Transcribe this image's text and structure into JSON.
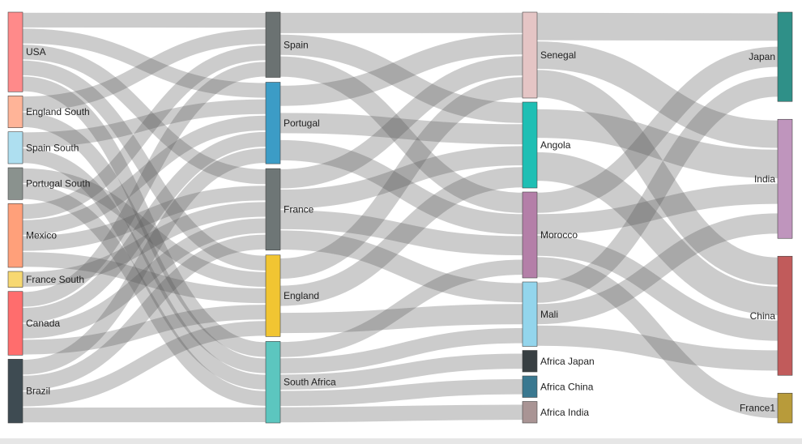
{
  "diagram": {
    "type": "sankey",
    "columns": [
      {
        "nodes": [
          {
            "id": "usa",
            "label": "USA",
            "color": "#ff8a8a"
          },
          {
            "id": "england-south",
            "label": "England South",
            "color": "#ffb498"
          },
          {
            "id": "spain-south",
            "label": "Spain South",
            "color": "#aedff0"
          },
          {
            "id": "portugal-south",
            "label": "Portugal South",
            "color": "#8a928e"
          },
          {
            "id": "mexico",
            "label": "Mexico",
            "color": "#ffa07a"
          },
          {
            "id": "france-south",
            "label": "France South",
            "color": "#f7d871"
          },
          {
            "id": "canada",
            "label": "Canada",
            "color": "#ff6d6d"
          },
          {
            "id": "brazil",
            "label": "Brazil",
            "color": "#3e4b52"
          }
        ]
      },
      {
        "nodes": [
          {
            "id": "spain",
            "label": "Spain",
            "color": "#6b7272"
          },
          {
            "id": "portugal",
            "label": "Portugal",
            "color": "#3c9cc6"
          },
          {
            "id": "france",
            "label": "France",
            "color": "#6e7676"
          },
          {
            "id": "england",
            "label": "England",
            "color": "#f1c532"
          },
          {
            "id": "south-africa",
            "label": "South Africa",
            "color": "#5cc6bf"
          }
        ]
      },
      {
        "nodes": [
          {
            "id": "senegal",
            "label": "Senegal",
            "color": "#e5c5c5"
          },
          {
            "id": "angola",
            "label": "Angola",
            "color": "#1fbfb4"
          },
          {
            "id": "morocco",
            "label": "Morocco",
            "color": "#b47fa8"
          },
          {
            "id": "mali",
            "label": "Mali",
            "color": "#93d5ec"
          },
          {
            "id": "africa-japan",
            "label": "Africa Japan",
            "color": "#383f42"
          },
          {
            "id": "africa-china",
            "label": "Africa China",
            "color": "#3a7890"
          },
          {
            "id": "africa-india",
            "label": "Africa India",
            "color": "#a99494"
          }
        ]
      },
      {
        "nodes": [
          {
            "id": "japan",
            "label": "Japan",
            "color": "#2f9088"
          },
          {
            "id": "india",
            "label": "India",
            "color": "#bf95bd"
          },
          {
            "id": "china",
            "label": "China",
            "color": "#c15b5b"
          },
          {
            "id": "france1",
            "label": "France1",
            "color": "#b89b3a"
          }
        ]
      }
    ],
    "links": [
      [
        "usa",
        "spain",
        1
      ],
      [
        "usa",
        "portugal",
        1
      ],
      [
        "usa",
        "france",
        1
      ],
      [
        "usa",
        "england",
        1
      ],
      [
        "usa",
        "south-africa",
        1
      ],
      [
        "england-south",
        "spain",
        1
      ],
      [
        "england-south",
        "south-africa",
        1
      ],
      [
        "spain-south",
        "portugal",
        1
      ],
      [
        "spain-south",
        "south-africa",
        1
      ],
      [
        "portugal-south",
        "england",
        1
      ],
      [
        "portugal-south",
        "south-africa",
        1
      ],
      [
        "mexico",
        "spain",
        1
      ],
      [
        "mexico",
        "portugal",
        1
      ],
      [
        "mexico",
        "france",
        1
      ],
      [
        "mexico",
        "england",
        1
      ],
      [
        "france-south",
        "france",
        1
      ],
      [
        "canada",
        "spain",
        1
      ],
      [
        "canada",
        "portugal",
        1
      ],
      [
        "canada",
        "france",
        1
      ],
      [
        "canada",
        "england",
        1
      ],
      [
        "brazil",
        "portugal",
        1
      ],
      [
        "brazil",
        "france",
        1
      ],
      [
        "brazil",
        "england",
        1
      ],
      [
        "brazil",
        "south-africa",
        1
      ],
      [
        "spain",
        "senegal",
        1
      ],
      [
        "spain",
        "angola",
        1
      ],
      [
        "spain",
        "morocco",
        1
      ],
      [
        "portugal",
        "senegal",
        1
      ],
      [
        "portugal",
        "angola",
        1
      ],
      [
        "portugal",
        "morocco",
        1
      ],
      [
        "france",
        "senegal",
        1
      ],
      [
        "france",
        "angola",
        1
      ],
      [
        "france",
        "morocco",
        1
      ],
      [
        "france",
        "mali",
        1
      ],
      [
        "england",
        "senegal",
        1
      ],
      [
        "england",
        "angola",
        1
      ],
      [
        "england",
        "mali",
        1
      ],
      [
        "south-africa",
        "morocco",
        1
      ],
      [
        "south-africa",
        "mali",
        1
      ],
      [
        "south-africa",
        "africa-japan",
        1
      ],
      [
        "south-africa",
        "africa-china",
        1
      ],
      [
        "south-africa",
        "africa-india",
        1
      ],
      [
        "senegal",
        "japan",
        1
      ],
      [
        "senegal",
        "india",
        1
      ],
      [
        "senegal",
        "china",
        1
      ],
      [
        "angola",
        "india",
        1
      ],
      [
        "angola",
        "china",
        1
      ],
      [
        "morocco",
        "japan",
        1
      ],
      [
        "morocco",
        "india",
        1
      ],
      [
        "morocco",
        "china",
        1
      ],
      [
        "morocco",
        "france1",
        1
      ],
      [
        "mali",
        "japan",
        1
      ],
      [
        "mali",
        "india",
        1
      ],
      [
        "mali",
        "china",
        1
      ]
    ]
  }
}
